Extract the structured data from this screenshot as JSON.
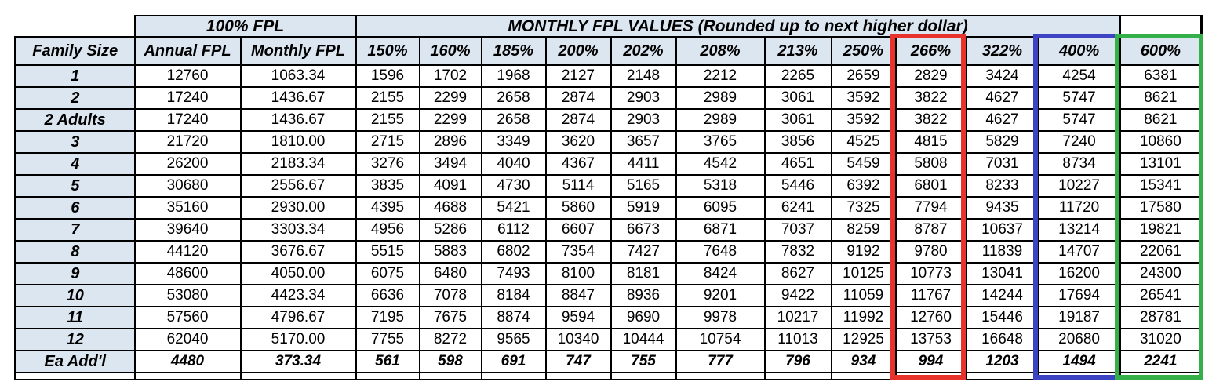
{
  "colors": {
    "header_fill": "#dce6f1",
    "border": "#000000",
    "highlight_red": "#e8332c",
    "highlight_blue": "#3d44c3",
    "highlight_green": "#33b04a"
  },
  "table": {
    "group_headers": {
      "fpl_100": "100% FPL",
      "monthly_values": "MONTHLY FPL VALUES (Rounded up to next higher dollar)"
    },
    "columns": [
      "Family Size",
      "Annual FPL",
      "Monthly FPL",
      "150%",
      "160%",
      "185%",
      "200%",
      "202%",
      "208%",
      "213%",
      "250%",
      "266%",
      "322%",
      "400%",
      "600%"
    ],
    "rows": [
      {
        "family": "1",
        "values": [
          "12760",
          "1063.34",
          "1596",
          "1702",
          "1968",
          "2127",
          "2148",
          "2212",
          "2265",
          "2659",
          "2829",
          "3424",
          "4254",
          "6381"
        ]
      },
      {
        "family": "2",
        "values": [
          "17240",
          "1436.67",
          "2155",
          "2299",
          "2658",
          "2874",
          "2903",
          "2989",
          "3061",
          "3592",
          "3822",
          "4627",
          "5747",
          "8621"
        ]
      },
      {
        "family": "2 Adults",
        "values": [
          "17240",
          "1436.67",
          "2155",
          "2299",
          "2658",
          "2874",
          "2903",
          "2989",
          "3061",
          "3592",
          "3822",
          "4627",
          "5747",
          "8621"
        ]
      },
      {
        "family": "3",
        "values": [
          "21720",
          "1810.00",
          "2715",
          "2896",
          "3349",
          "3620",
          "3657",
          "3765",
          "3856",
          "4525",
          "4815",
          "5829",
          "7240",
          "10860"
        ]
      },
      {
        "family": "4",
        "values": [
          "26200",
          "2183.34",
          "3276",
          "3494",
          "4040",
          "4367",
          "4411",
          "4542",
          "4651",
          "5459",
          "5808",
          "7031",
          "8734",
          "13101"
        ]
      },
      {
        "family": "5",
        "values": [
          "30680",
          "2556.67",
          "3835",
          "4091",
          "4730",
          "5114",
          "5165",
          "5318",
          "5446",
          "6392",
          "6801",
          "8233",
          "10227",
          "15341"
        ]
      },
      {
        "family": "6",
        "values": [
          "35160",
          "2930.00",
          "4395",
          "4688",
          "5421",
          "5860",
          "5919",
          "6095",
          "6241",
          "7325",
          "7794",
          "9435",
          "11720",
          "17580"
        ]
      },
      {
        "family": "7",
        "values": [
          "39640",
          "3303.34",
          "4956",
          "5286",
          "6112",
          "6607",
          "6673",
          "6871",
          "7037",
          "8259",
          "8787",
          "10637",
          "13214",
          "19821"
        ]
      },
      {
        "family": "8",
        "values": [
          "44120",
          "3676.67",
          "5515",
          "5883",
          "6802",
          "7354",
          "7427",
          "7648",
          "7832",
          "9192",
          "9780",
          "11839",
          "14707",
          "22061"
        ]
      },
      {
        "family": "9",
        "values": [
          "48600",
          "4050.00",
          "6075",
          "6480",
          "7493",
          "8100",
          "8181",
          "8424",
          "8627",
          "10125",
          "10773",
          "13041",
          "16200",
          "24300"
        ]
      },
      {
        "family": "10",
        "values": [
          "53080",
          "4423.34",
          "6636",
          "7078",
          "8184",
          "8847",
          "8936",
          "9201",
          "9422",
          "11059",
          "11767",
          "14244",
          "17694",
          "26541"
        ]
      },
      {
        "family": "11",
        "values": [
          "57560",
          "4796.67",
          "7195",
          "7675",
          "8874",
          "9594",
          "9690",
          "9978",
          "10217",
          "11992",
          "12760",
          "15446",
          "19187",
          "28781"
        ]
      },
      {
        "family": "12",
        "values": [
          "62040",
          "5170.00",
          "7755",
          "8272",
          "9565",
          "10340",
          "10444",
          "10754",
          "11013",
          "12925",
          "13753",
          "16648",
          "20680",
          "31020"
        ]
      },
      {
        "family": "Ea Add'l",
        "values": [
          "4480",
          "373.34",
          "561",
          "598",
          "691",
          "747",
          "755",
          "777",
          "796",
          "934",
          "994",
          "1203",
          "1494",
          "2241"
        ]
      }
    ],
    "highlighted_columns": [
      {
        "column": "266%",
        "color": "#e8332c"
      },
      {
        "column": "400%",
        "color": "#3d44c3"
      },
      {
        "column": "600%",
        "color": "#33b04a"
      }
    ]
  }
}
